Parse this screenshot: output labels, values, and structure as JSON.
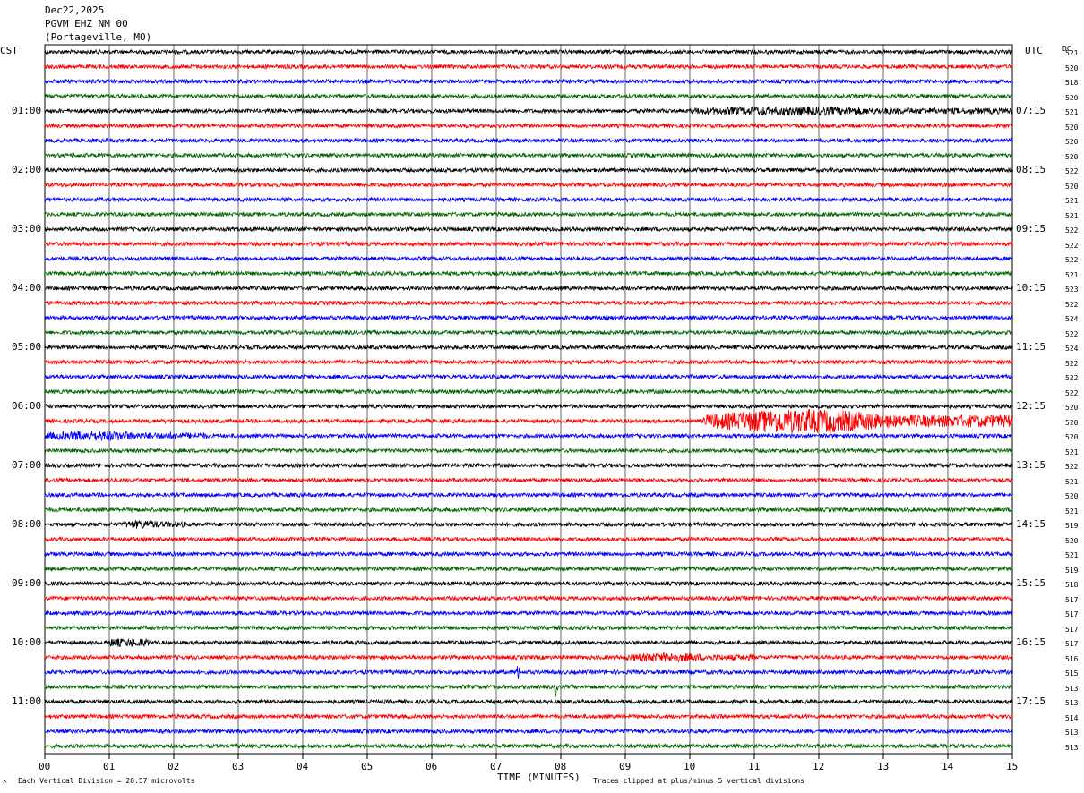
{
  "header": {
    "date": "Dec22,2025",
    "station": "PGVM EHZ NM 00",
    "location": "(Portageville, MO)"
  },
  "left_tz": "CST",
  "right_tz": "UTC",
  "dc_header": "DC",
  "footer": {
    "scale": "Each Vertical Division =   28.57 microvolts",
    "xlabel": "TIME (MINUTES)",
    "clip_note": "Traces clipped at plus/minus 5 vertical divisions",
    "corner_mark": "^"
  },
  "colors": {
    "cycle": [
      "#000000",
      "#ff0000",
      "#0000ff",
      "#006600"
    ]
  },
  "chart_data": {
    "type": "line",
    "title": "PGVM EHZ NM 00",
    "xlabel": "TIME (MINUTES)",
    "xlim": [
      0,
      15
    ],
    "x_ticks": [
      "00",
      "01",
      "02",
      "03",
      "04",
      "05",
      "06",
      "07",
      "08",
      "09",
      "10",
      "11",
      "12",
      "13",
      "14",
      "15"
    ],
    "trace_count": 48,
    "left_hour_labels": [
      "01:00",
      "02:00",
      "03:00",
      "04:00",
      "05:00",
      "06:00",
      "07:00",
      "08:00",
      "09:00",
      "10:00",
      "11:00"
    ],
    "right_hour_labels": [
      "07:15",
      "08:15",
      "09:15",
      "10:15",
      "11:15",
      "12:15",
      "13:15",
      "14:15",
      "15:15",
      "16:15",
      "17:15"
    ],
    "dc_offsets": [
      521,
      520,
      518,
      520,
      521,
      520,
      520,
      520,
      522,
      520,
      521,
      521,
      522,
      522,
      522,
      521,
      523,
      522,
      524,
      522,
      524,
      522,
      522,
      522,
      520,
      520,
      520,
      521,
      522,
      521,
      520,
      521,
      519,
      520,
      521,
      519,
      518,
      517,
      517,
      517,
      517,
      516,
      515,
      513,
      513,
      514,
      513,
      513
    ],
    "events": [
      {
        "trace": 4,
        "start_min": 10.0,
        "end_min": 15.0,
        "amp": 0.5
      },
      {
        "trace": 25,
        "start_min": 10.2,
        "end_min": 15.0,
        "amp": 1.9
      },
      {
        "trace": 26,
        "start_min": 0.0,
        "end_min": 2.5,
        "amp": 0.6
      },
      {
        "trace": 32,
        "start_min": 1.2,
        "end_min": 2.2,
        "amp": 0.45
      },
      {
        "trace": 40,
        "start_min": 1.0,
        "end_min": 1.6,
        "amp": 0.5
      },
      {
        "trace": 41,
        "start_min": 9.0,
        "end_min": 11.0,
        "amp": 0.5
      },
      {
        "trace": 42,
        "start_min": 7.3,
        "end_min": 7.35,
        "amp": 1.2
      },
      {
        "trace": 43,
        "start_min": 7.9,
        "end_min": 7.95,
        "amp": 1.8
      }
    ]
  }
}
